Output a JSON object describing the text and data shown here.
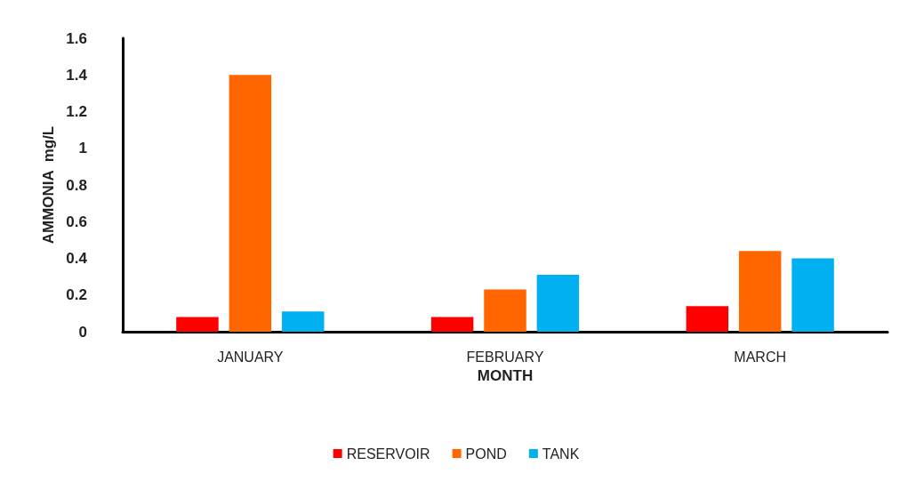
{
  "chart_data": {
    "type": "bar",
    "xlabel": "MONTH",
    "ylabel": "AMMONIA  mg/L",
    "categories": [
      "JANUARY",
      "FEBRUARY",
      "MARCH"
    ],
    "series": [
      {
        "name": "RESERVOIR",
        "color": "#ff0000",
        "values": [
          0.08,
          0.08,
          0.14
        ]
      },
      {
        "name": "POND",
        "color": "#ff6600",
        "values": [
          1.4,
          0.23,
          0.44
        ]
      },
      {
        "name": "TANK",
        "color": "#00b0f0",
        "values": [
          0.11,
          0.31,
          0.4
        ]
      }
    ],
    "ylim": [
      0,
      1.6
    ],
    "yticks": [
      0,
      0.2,
      0.4,
      0.6,
      0.8,
      1,
      1.2,
      1.4,
      1.6
    ],
    "grid": false,
    "legend": "bottom"
  }
}
